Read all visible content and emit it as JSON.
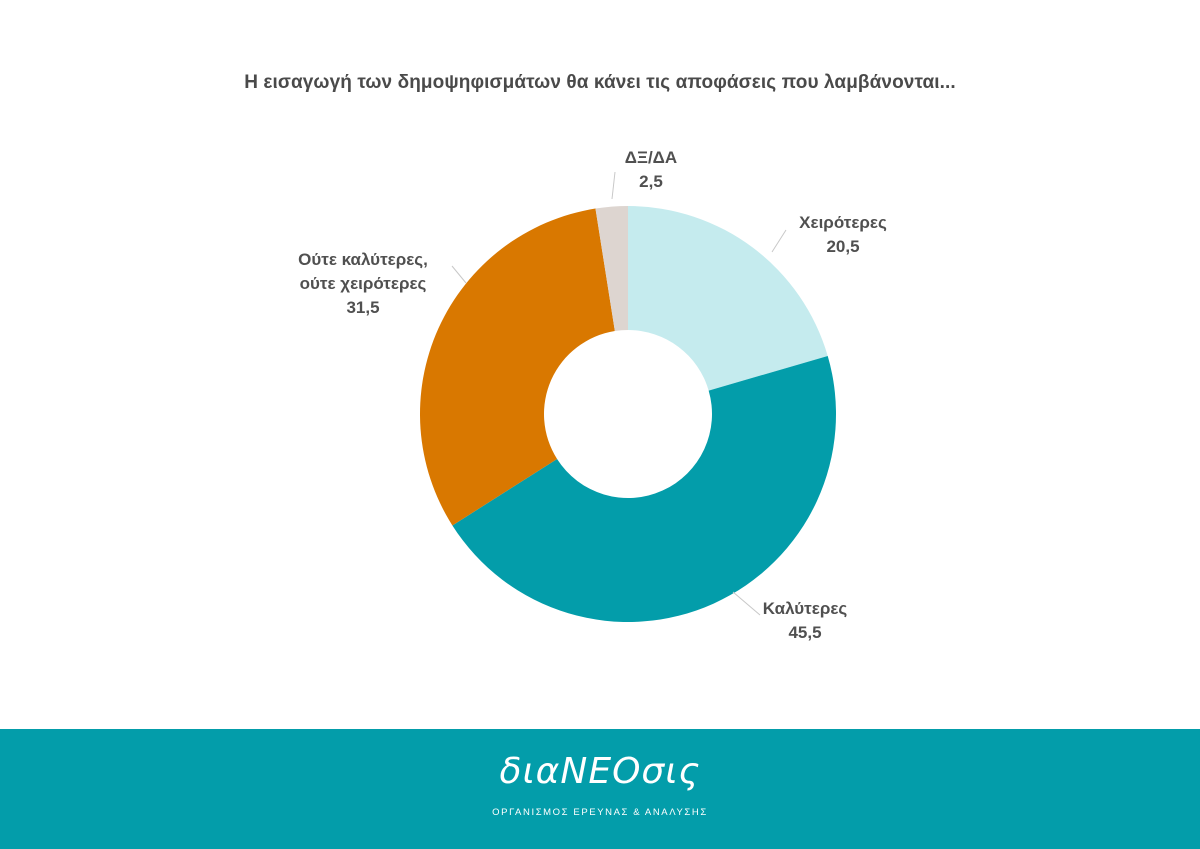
{
  "chart_data": {
    "type": "pie",
    "donut": true,
    "title": "Η εισαγωγή των δημοψηφισμάτων θα κάνει τις αποφάσεις που λαμβάνονται...",
    "slices": [
      {
        "label": [
          "Χειρότερες"
        ],
        "value": 20.5,
        "value_text": "20,5",
        "color": "#c5ebee"
      },
      {
        "label": [
          "Καλύτερες"
        ],
        "value": 45.5,
        "value_text": "45,5",
        "color": "#039daa"
      },
      {
        "label": [
          "Ούτε καλύτερες,",
          "ούτε χειρότερες"
        ],
        "value": 31.5,
        "value_text": "31,5",
        "color": "#d97800"
      },
      {
        "label": [
          "ΔΞ/ΔΑ"
        ],
        "value": 2.5,
        "value_text": "2,5",
        "color": "#ddd5d0"
      }
    ]
  },
  "footer": {
    "logo": "διαΝΕΟσις",
    "tagline": "ΟΡΓΑΝΙΣΜΟΣ ΕΡΕΥΝΑΣ & ΑΝΑΛΥΣΗΣ",
    "background": "#039daa"
  }
}
